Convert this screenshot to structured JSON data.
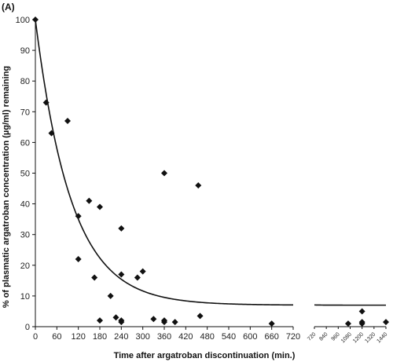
{
  "chart_data": {
    "type": "scatter",
    "panel_label": "(A)",
    "title": "",
    "xlabel": "Time after argatroban discontinuation (min.)",
    "ylabel": "% of plasmatic argatroban concentration (µg/ml) remaining",
    "ylim": [
      0,
      100
    ],
    "yticks": [
      0,
      10,
      20,
      30,
      40,
      50,
      60,
      70,
      80,
      90,
      100
    ],
    "xlim_segment1": [
      0,
      720
    ],
    "xticks_segment1": [
      0,
      60,
      120,
      180,
      240,
      300,
      360,
      420,
      480,
      540,
      600,
      660,
      720
    ],
    "xlim_segment2": [
      720,
      1440
    ],
    "xticks_segment2": [
      720,
      840,
      960,
      1080,
      1200,
      1320,
      1440
    ],
    "marker": "diamond",
    "grid": false,
    "points": [
      {
        "x": 0,
        "y": 100
      },
      {
        "x": 30,
        "y": 73
      },
      {
        "x": 45,
        "y": 63
      },
      {
        "x": 90,
        "y": 67
      },
      {
        "x": 120,
        "y": 36
      },
      {
        "x": 120,
        "y": 22
      },
      {
        "x": 150,
        "y": 41
      },
      {
        "x": 165,
        "y": 16
      },
      {
        "x": 180,
        "y": 39
      },
      {
        "x": 180,
        "y": 2
      },
      {
        "x": 210,
        "y": 10
      },
      {
        "x": 225,
        "y": 3
      },
      {
        "x": 240,
        "y": 32
      },
      {
        "x": 240,
        "y": 17
      },
      {
        "x": 240,
        "y": 2
      },
      {
        "x": 240,
        "y": 1.5
      },
      {
        "x": 285,
        "y": 16
      },
      {
        "x": 300,
        "y": 18
      },
      {
        "x": 330,
        "y": 2.5
      },
      {
        "x": 360,
        "y": 50
      },
      {
        "x": 360,
        "y": 2
      },
      {
        "x": 360,
        "y": 1.5
      },
      {
        "x": 390,
        "y": 1.5
      },
      {
        "x": 455,
        "y": 46
      },
      {
        "x": 460,
        "y": 3.5
      },
      {
        "x": 660,
        "y": 1
      },
      {
        "x": 1060,
        "y": 1
      },
      {
        "x": 1200,
        "y": 5
      },
      {
        "x": 1200,
        "y": 1.5
      },
      {
        "x": 1200,
        "y": 1
      },
      {
        "x": 1440,
        "y": 1.5
      }
    ],
    "fit_curve": {
      "type": "exponential-decay",
      "plateau": 7,
      "start": 100,
      "k": 0.01
    }
  }
}
